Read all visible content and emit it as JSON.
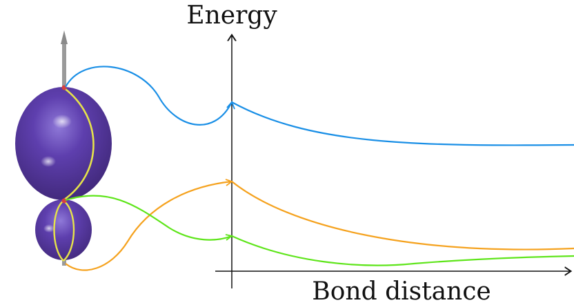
{
  "axes": {
    "y_label": "Energy",
    "x_label": "Bond distance"
  },
  "colors": {
    "curve_top": "#1a8fe6",
    "curve_middle": "#f5a21e",
    "curve_bottom": "#5ee51a",
    "orbital_fill": "#5a3aa6",
    "nodal_ring": "#e6e34a",
    "atom_marker": "#d94040",
    "axis": "#111111",
    "dipole_arrow": "#9a9a9a"
  },
  "icons": {
    "molecule": "two-lobed-orbital-illustration",
    "arrow": "dipole-arrow"
  }
}
